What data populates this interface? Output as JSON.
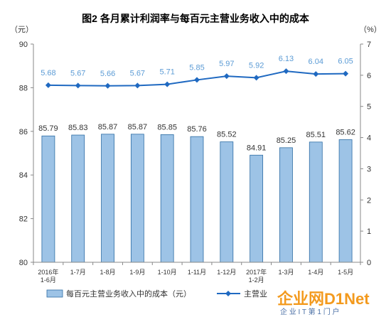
{
  "chart_data": {
    "type": "bar+line",
    "title": "图2  各月累计利润率与每百元主营业务收入中的成本",
    "left_unit": "（元）",
    "right_unit": "（%）",
    "categories": [
      "2016年\n1-6月",
      "1-7月",
      "1-8月",
      "1-9月",
      "1-10月",
      "1-11月",
      "1-12月",
      "2017年\n1-2月",
      "1-3月",
      "1-4月",
      "1-5月"
    ],
    "left_axis": {
      "ylim": [
        80,
        90
      ],
      "ticks": [
        "80",
        "82",
        "84",
        "86",
        "88",
        "90"
      ]
    },
    "right_axis": {
      "ylim": [
        0,
        7
      ],
      "ticks": [
        "0",
        "1",
        "2",
        "3",
        "4",
        "5",
        "6",
        "7"
      ]
    },
    "series": [
      {
        "name": "每百元主营业务收入中的成本（元）",
        "type": "bar",
        "axis": "left",
        "values": [
          85.79,
          85.83,
          85.87,
          85.87,
          85.85,
          85.76,
          85.52,
          84.91,
          85.25,
          85.51,
          85.62
        ],
        "labels": [
          "85.79",
          "85.83",
          "85.87",
          "85.87",
          "85.85",
          "85.76",
          "85.52",
          "84.91",
          "85.25",
          "85.51",
          "85.62"
        ]
      },
      {
        "name": "主营业",
        "type": "line",
        "axis": "right",
        "values": [
          5.68,
          5.67,
          5.66,
          5.67,
          5.71,
          5.85,
          5.97,
          5.92,
          6.13,
          6.04,
          6.05
        ],
        "labels": [
          "5.68",
          "5.67",
          "5.66",
          "5.67",
          "5.71",
          "5.85",
          "5.97",
          "5.92",
          "6.13",
          "6.04",
          "6.05"
        ]
      }
    ],
    "legend_position": "bottom",
    "grid": false,
    "colors": {
      "bar_fill": "#9dc3e6",
      "bar_stroke": "#2e6da4",
      "line": "#1f69c1",
      "line_label": "#5b9bd5",
      "text": "#333333"
    }
  },
  "watermark": {
    "brand": "企业网D1Net",
    "tagline": "企 业 I T 第 1 门 户"
  }
}
